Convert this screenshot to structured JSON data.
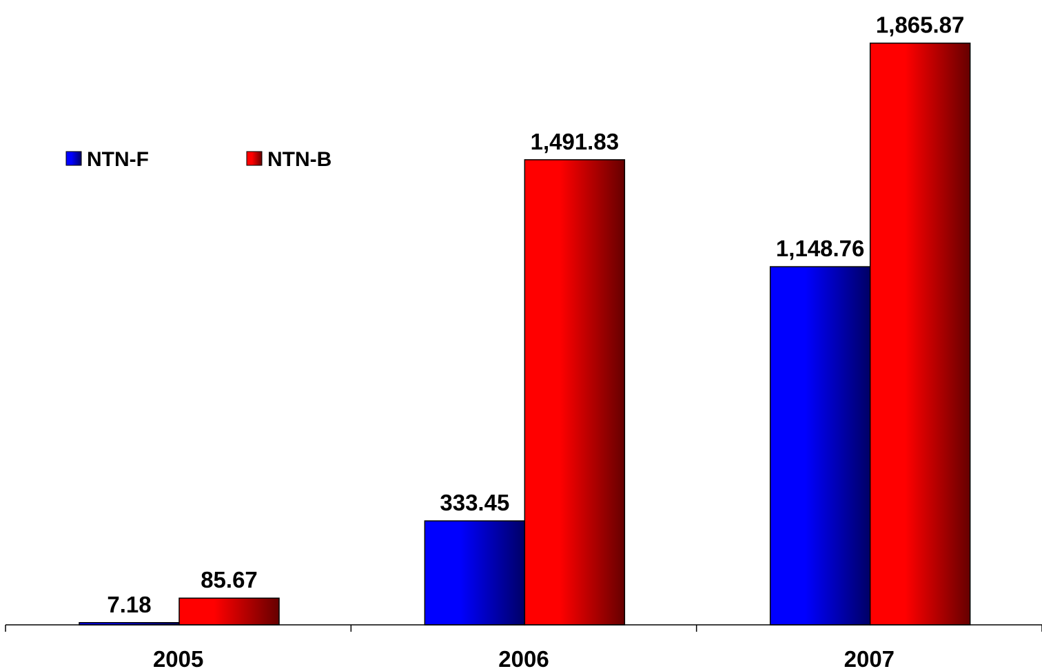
{
  "chart_data": {
    "type": "bar",
    "title": "",
    "xlabel": "",
    "ylabel": "",
    "categories": [
      "2005",
      "2006",
      "2007"
    ],
    "series": [
      {
        "name": "NTN-F",
        "values": [
          7.18,
          333.45,
          1148.76
        ],
        "labels": [
          "7.18",
          "333.45",
          "1,148.76"
        ],
        "color": "#0000FF",
        "color_dark": "#000066"
      },
      {
        "name": "NTN-B",
        "values": [
          85.67,
          1491.83,
          1865.87
        ],
        "labels": [
          "85.67",
          "1,491.83",
          "1,865.87"
        ],
        "color": "#FF0000",
        "color_dark": "#660000"
      }
    ],
    "ylim": [
      0,
      1960
    ],
    "grid": false,
    "y_axis_visible": false,
    "legend_position": "top-left"
  }
}
